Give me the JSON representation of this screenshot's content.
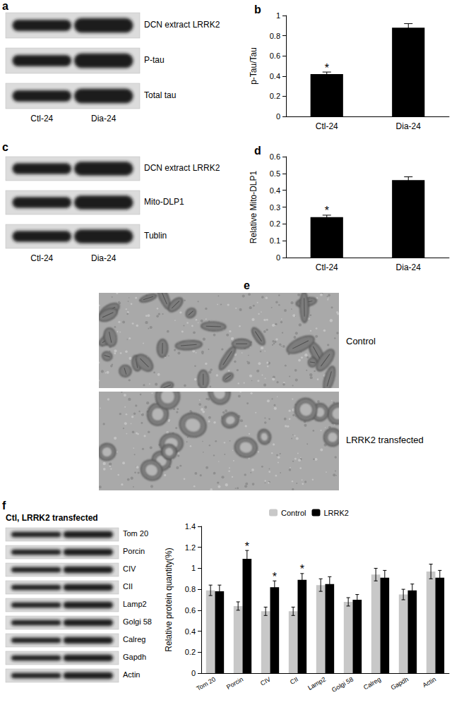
{
  "chart_data": [
    {
      "type": "bar",
      "title": "b",
      "y_label": "p-Tau/Tau",
      "categories": [
        "Ctl-24",
        "Dia-24"
      ],
      "values": [
        0.42,
        0.88
      ],
      "error": [
        0.02,
        0.04
      ],
      "color": "#000000",
      "ylim": [
        0,
        1
      ],
      "yticks": [
        0,
        0.2,
        0.4,
        0.6,
        0.8,
        1
      ],
      "grid": false,
      "annotations": [
        {
          "text": "*",
          "x": "Ctl-24"
        }
      ]
    },
    {
      "type": "bar",
      "title": "d",
      "y_label": "Relative Mito-DLP1",
      "categories": [
        "Ctl-24",
        "Dia-24"
      ],
      "values": [
        0.24,
        0.46
      ],
      "error": [
        0.012,
        0.02
      ],
      "color": "#000000",
      "ylim": [
        0,
        0.6
      ],
      "yticks": [
        0,
        0.1,
        0.2,
        0.3,
        0.4,
        0.5,
        0.6
      ],
      "grid": false,
      "annotations": [
        {
          "text": "*",
          "x": "Ctl-24"
        }
      ]
    },
    {
      "type": "bar",
      "y_label": "Relative protein quantity(%)",
      "categories": [
        "Tom 20",
        "Porcin",
        "CIV",
        "CII",
        "Lamp2",
        "Golgi 58",
        "Calreg",
        "Gapdh",
        "Actin"
      ],
      "series": [
        {
          "name": "Control",
          "color": "#c8c8c8",
          "values": [
            0.79,
            0.64,
            0.59,
            0.59,
            0.84,
            0.68,
            0.94,
            0.75,
            0.97
          ],
          "error": [
            0.05,
            0.04,
            0.04,
            0.04,
            0.06,
            0.04,
            0.06,
            0.05,
            0.07
          ]
        },
        {
          "name": "LRRK2",
          "color": "#000000",
          "values": [
            0.78,
            1.09,
            0.82,
            0.89,
            0.85,
            0.7,
            0.91,
            0.79,
            0.91
          ],
          "error": [
            0.06,
            0.08,
            0.06,
            0.06,
            0.07,
            0.05,
            0.07,
            0.06,
            0.07
          ]
        }
      ],
      "ylim": [
        0,
        1.4
      ],
      "yticks": [
        0,
        0.2,
        0.4,
        0.6,
        0.8,
        1,
        1.2,
        1.4
      ],
      "grid": false,
      "legend": "top",
      "annotations": [
        {
          "text": "*",
          "x": "Porcin",
          "series": "LRRK2"
        },
        {
          "text": "*",
          "x": "CIV",
          "series": "LRRK2"
        },
        {
          "text": "*",
          "x": "CII",
          "series": "LRRK2"
        }
      ]
    }
  ],
  "blots": [
    {
      "panel": "a",
      "lanes": [
        "Ctl-24",
        "Dia-24"
      ],
      "rows": [
        "DCN extract LRRK2",
        "P-tau",
        "Total tau"
      ]
    },
    {
      "panel": "c",
      "lanes": [
        "Ctl-24",
        "Dia-24"
      ],
      "rows": [
        "DCN extract LRRK2",
        "Mito-DLP1",
        "Tublin"
      ]
    },
    {
      "panel": "f",
      "title": "Ctl, LRRK2 transfected",
      "rows": [
        "Tom 20",
        "Porcin",
        "CIV",
        "CII",
        "Lamp2",
        "Golgi 58",
        "Calreg",
        "Gapdh",
        "Actin"
      ]
    }
  ],
  "micrograph": {
    "panel": "e",
    "images": [
      "Control",
      "LRRK2 transfected"
    ]
  }
}
